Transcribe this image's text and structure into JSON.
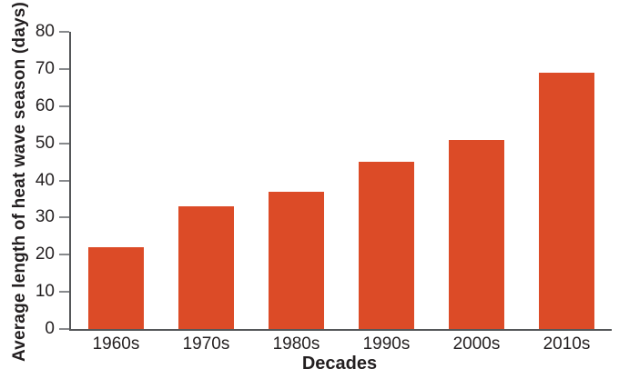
{
  "chart_data": {
    "type": "bar",
    "title": "",
    "xlabel": "Decades",
    "ylabel": "Average length of heat wave season (days)",
    "categories": [
      "1960s",
      "1970s",
      "1980s",
      "1990s",
      "2000s",
      "2010s"
    ],
    "values": [
      22,
      33,
      37,
      45,
      51,
      69
    ],
    "ylim": [
      0,
      80
    ],
    "yticks": [
      0,
      10,
      20,
      30,
      40,
      50,
      60,
      70,
      80
    ],
    "grid": false,
    "legend": false,
    "colors": {
      "bar": "#DC4B27",
      "axis": "#555759",
      "tick_mark": "#87898C",
      "text": "#231F20"
    }
  }
}
